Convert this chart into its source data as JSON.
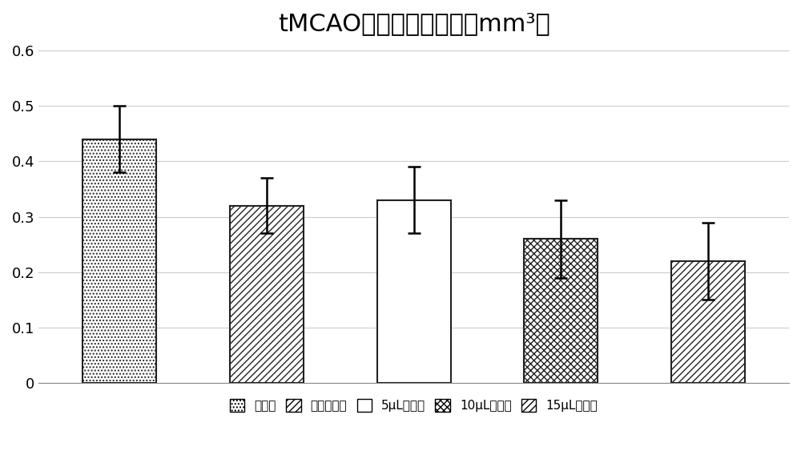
{
  "title": "tMCAO小鼠脑梗死体积（mm³）",
  "categories": [
    "模型组",
    "阳性对照组",
    "5μL给药组",
    "10μL给药组",
    "15μL给药组"
  ],
  "values": [
    0.44,
    0.32,
    0.33,
    0.26,
    0.22
  ],
  "errors_upper": [
    0.06,
    0.05,
    0.06,
    0.07,
    0.07
  ],
  "errors_lower": [
    0.06,
    0.05,
    0.06,
    0.07,
    0.07
  ],
  "ylim": [
    0,
    0.6
  ],
  "yticks": [
    0,
    0.1,
    0.2,
    0.3,
    0.4,
    0.5,
    0.6
  ],
  "bar_color": "#ffffff",
  "bar_edgecolor": "#222222",
  "background_color": "#ffffff",
  "title_fontsize": 22,
  "legend_labels": [
    "模型组",
    "阳性对照组",
    "5μL给药组",
    "10μL给药组",
    "15μL给药组"
  ],
  "hatch_patterns": [
    "....",
    "////",
    "~",
    "/\\\\",
    "~"
  ],
  "legend_hatch_patterns": [
    "....",
    "////",
    "~",
    "/\\\\",
    "~"
  ]
}
